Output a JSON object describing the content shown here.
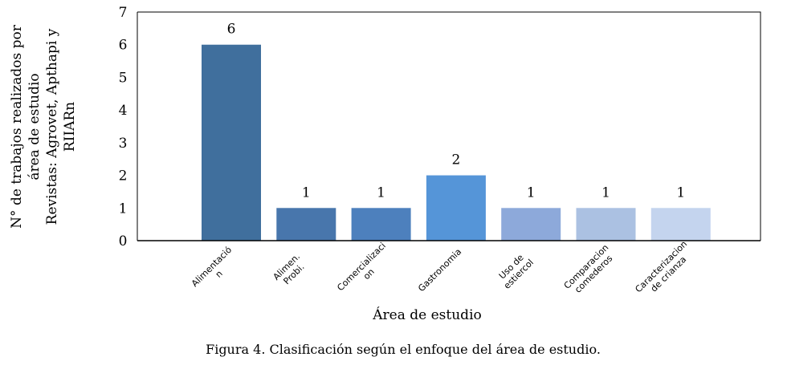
{
  "chart_data": {
    "type": "bar",
    "categories": [
      [
        "Alimentació",
        "n"
      ],
      [
        "Alimen.",
        "Probi."
      ],
      [
        "Comercializaci",
        "on"
      ],
      [
        "Gastronomia"
      ],
      [
        "Uso de",
        "estiercol"
      ],
      [
        "Comparacion",
        "comederos"
      ],
      [
        "Caracterizacion",
        "de crianza"
      ]
    ],
    "values": [
      6,
      1,
      1,
      2,
      1,
      1,
      1
    ],
    "colors": [
      "#406f9d",
      "#4876ac",
      "#4d80bd",
      "#5595d8",
      "#8da9da",
      "#abc1e2",
      "#c4d4ee"
    ],
    "ylabel": [
      "N° de  trabajos realizados por",
      "área de estudio",
      "Revistas: Agrovet, Apthapi y",
      "RIIARn"
    ],
    "xlabel": "Área de estudio",
    "ylim": [
      0,
      7
    ],
    "yticks": [
      0,
      1,
      2,
      3,
      4,
      5,
      6,
      7
    ],
    "grid": false
  },
  "caption": "Figura 4. Clasificación según el enfoque del área de estudio."
}
